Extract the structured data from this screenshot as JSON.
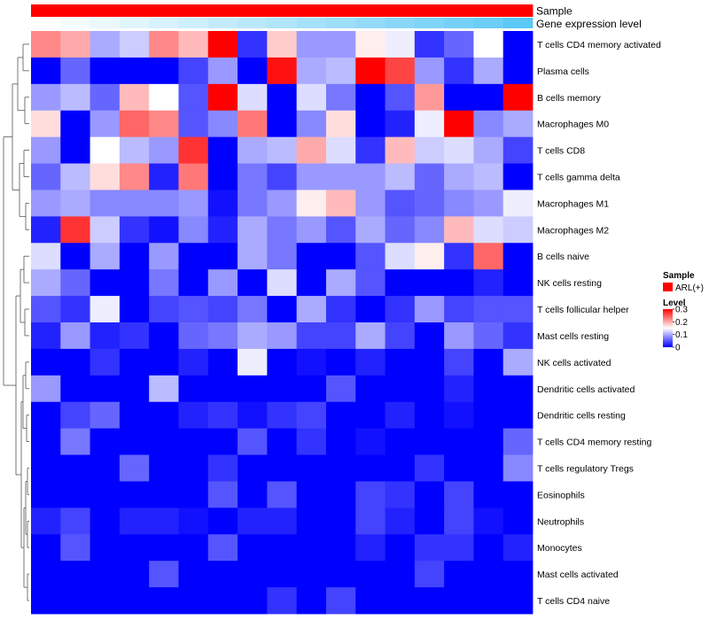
{
  "chart_data": {
    "type": "heatmap",
    "title": "",
    "column_annotations": [
      {
        "name": "Sample",
        "label": "Sample",
        "color": "#ff0000"
      },
      {
        "name": "Gene expression level",
        "label": "Gene expression level",
        "gradient": [
          "#ffffff",
          "#5bc8f5"
        ]
      }
    ],
    "rows": [
      "T cells CD4 memory activated",
      "Plasma cells",
      "B cells memory",
      "Macrophages M0",
      "T cells CD8",
      "T cells gamma delta",
      "Macrophages M1",
      "Macrophages M2",
      "B cells naive",
      "NK cells resting",
      "T cells follicular helper",
      "Mast cells resting",
      "NK cells activated",
      "Dendritic cells activated",
      "Dendritic cells resting",
      "T cells CD4 memory resting",
      "T cells regulatory  Tregs",
      "Eosinophils",
      "Neutrophils",
      "Monocytes",
      "Mast cells activated",
      "T cells CD4 naive"
    ],
    "n_columns": 17,
    "values": [
      [
        0.22,
        0.2,
        0.1,
        0.12,
        0.22,
        0.19,
        0.3,
        0.03,
        0.18,
        0.09,
        0.09,
        0.16,
        0.14,
        0.03,
        0.06,
        0.15,
        0.0
      ],
      [
        0.0,
        0.06,
        0.0,
        0.0,
        0.0,
        0.04,
        0.09,
        0.0,
        0.29,
        0.1,
        0.11,
        0.3,
        0.26,
        0.09,
        0.03,
        0.1,
        0.0
      ],
      [
        0.09,
        0.11,
        0.06,
        0.19,
        0.15,
        0.05,
        0.3,
        0.13,
        0.0,
        0.13,
        0.07,
        0.0,
        0.05,
        0.21,
        0.0,
        0.0,
        0.3
      ],
      [
        0.17,
        0.0,
        0.09,
        0.24,
        0.22,
        0.05,
        0.08,
        0.23,
        0.0,
        0.08,
        0.17,
        0.0,
        0.02,
        0.14,
        0.3,
        0.08,
        0.1
      ],
      [
        0.09,
        0.0,
        0.15,
        0.11,
        0.09,
        0.27,
        0.0,
        0.1,
        0.11,
        0.2,
        0.13,
        0.03,
        0.19,
        0.12,
        0.13,
        0.1,
        0.04
      ],
      [
        0.06,
        0.11,
        0.17,
        0.22,
        0.02,
        0.23,
        0.0,
        0.07,
        0.04,
        0.09,
        0.09,
        0.09,
        0.11,
        0.06,
        0.1,
        0.11,
        0.0
      ],
      [
        0.09,
        0.1,
        0.08,
        0.08,
        0.08,
        0.09,
        0.01,
        0.07,
        0.09,
        0.16,
        0.19,
        0.09,
        0.05,
        0.06,
        0.08,
        0.09,
        0.14
      ],
      [
        0.02,
        0.27,
        0.12,
        0.03,
        0.01,
        0.08,
        0.02,
        0.1,
        0.07,
        0.09,
        0.05,
        0.1,
        0.06,
        0.08,
        0.19,
        0.13,
        0.12
      ],
      [
        0.13,
        0.0,
        0.1,
        0.0,
        0.09,
        0.0,
        0.0,
        0.1,
        0.07,
        0.0,
        0.0,
        0.05,
        0.13,
        0.16,
        0.03,
        0.24,
        0.0
      ],
      [
        0.1,
        0.06,
        0.0,
        0.0,
        0.07,
        0.0,
        0.09,
        0.0,
        0.13,
        0.0,
        0.1,
        0.05,
        0.0,
        0.0,
        0.0,
        0.02,
        0.0
      ],
      [
        0.05,
        0.03,
        0.14,
        0.0,
        0.04,
        0.05,
        0.04,
        0.07,
        0.0,
        0.1,
        0.03,
        0.0,
        0.03,
        0.09,
        0.04,
        0.05,
        0.05
      ],
      [
        0.02,
        0.09,
        0.02,
        0.03,
        0.0,
        0.06,
        0.07,
        0.1,
        0.09,
        0.04,
        0.04,
        0.1,
        0.04,
        0.0,
        0.09,
        0.06,
        0.03
      ],
      [
        0.0,
        0.0,
        0.03,
        0.0,
        0.0,
        0.02,
        0.0,
        0.14,
        0.0,
        0.01,
        0.0,
        0.02,
        0.0,
        0.0,
        0.04,
        0.0,
        0.1
      ],
      [
        0.09,
        0.0,
        0.0,
        0.0,
        0.11,
        0.0,
        0.0,
        0.0,
        0.0,
        0.0,
        0.05,
        0.0,
        0.0,
        0.0,
        0.02,
        0.0,
        0.0
      ],
      [
        0.0,
        0.04,
        0.06,
        0.0,
        0.0,
        0.02,
        0.03,
        0.01,
        0.03,
        0.04,
        0.0,
        0.0,
        0.02,
        0.0,
        0.01,
        0.0,
        0.0
      ],
      [
        0.0,
        0.07,
        0.0,
        0.0,
        0.0,
        0.0,
        0.0,
        0.05,
        0.0,
        0.03,
        0.0,
        0.01,
        0.0,
        0.0,
        0.0,
        0.0,
        0.06
      ],
      [
        0.0,
        0.0,
        0.0,
        0.06,
        0.0,
        0.0,
        0.03,
        0.0,
        0.0,
        0.0,
        0.0,
        0.0,
        0.0,
        0.03,
        0.0,
        0.0,
        0.08
      ],
      [
        0.0,
        0.0,
        0.0,
        0.0,
        0.0,
        0.0,
        0.05,
        0.0,
        0.05,
        0.0,
        0.0,
        0.04,
        0.03,
        0.0,
        0.04,
        0.0,
        0.0
      ],
      [
        0.02,
        0.04,
        0.0,
        0.02,
        0.02,
        0.01,
        0.0,
        0.02,
        0.02,
        0.0,
        0.0,
        0.04,
        0.02,
        0.0,
        0.04,
        0.01,
        0.0
      ],
      [
        0.0,
        0.05,
        0.0,
        0.0,
        0.0,
        0.0,
        0.05,
        0.0,
        0.0,
        0.0,
        0.0,
        0.02,
        0.0,
        0.03,
        0.03,
        0.0,
        0.02
      ],
      [
        0.0,
        0.0,
        0.0,
        0.0,
        0.05,
        0.0,
        0.0,
        0.0,
        0.0,
        0.0,
        0.0,
        0.0,
        0.0,
        0.04,
        0.0,
        0.0,
        0.0
      ],
      [
        0.0,
        0.0,
        0.0,
        0.0,
        0.0,
        0.0,
        0.0,
        0.0,
        0.03,
        0.0,
        0.04,
        0.0,
        0.0,
        0.0,
        0.0,
        0.0,
        0.0
      ]
    ],
    "gene_expression_level": [
      0.0,
      0.06,
      0.12,
      0.18,
      0.24,
      0.3,
      0.36,
      0.42,
      0.48,
      0.54,
      0.6,
      0.66,
      0.72,
      0.78,
      0.84,
      0.9,
      1.0
    ],
    "color_scale": {
      "min": 0,
      "mid": 0.15,
      "max": 0.3,
      "low_color": "#0000ff",
      "mid_color": "#ffffff",
      "high_color": "#ff0000"
    },
    "legend": {
      "sample_title": "Sample",
      "sample_entry": "ARL(+)",
      "sample_color": "#ff0000",
      "level_title": "Level",
      "level_ticks": [
        "0.3",
        "0.2",
        "0.1",
        "0"
      ],
      "level_tick_values": [
        0.3,
        0.2,
        0.1,
        0
      ]
    },
    "row_dendrogram": true
  }
}
